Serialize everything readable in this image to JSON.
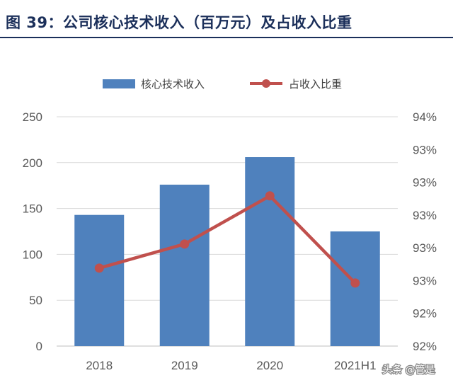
{
  "page_title": "图 39：公司核心技术收入（百万元）及占收入比重",
  "watermark": "头条 @管是",
  "chart_data": {
    "type": "bar",
    "categories": [
      "2018",
      "2019",
      "2020",
      "2021H1"
    ],
    "series": [
      {
        "name": "核心技术收入",
        "type": "bar",
        "axis": "left",
        "color": "#4f81bd",
        "values": [
          143,
          176,
          206,
          125
        ]
      },
      {
        "name": "占收入比重",
        "type": "line",
        "axis": "right",
        "color": "#c0504d",
        "values": [
          0.9268,
          0.9289,
          0.9331,
          0.9255
        ]
      }
    ],
    "y_left": {
      "min": 0,
      "max": 250,
      "ticks": [
        "0",
        "50",
        "100",
        "150",
        "200",
        "250"
      ]
    },
    "y_right": {
      "min": 0.92,
      "max": 0.94,
      "ticks": [
        "92%",
        "92%",
        "93%",
        "93%",
        "93%",
        "93%",
        "93%",
        "94%"
      ]
    },
    "legend_position": "top",
    "grid": true
  }
}
